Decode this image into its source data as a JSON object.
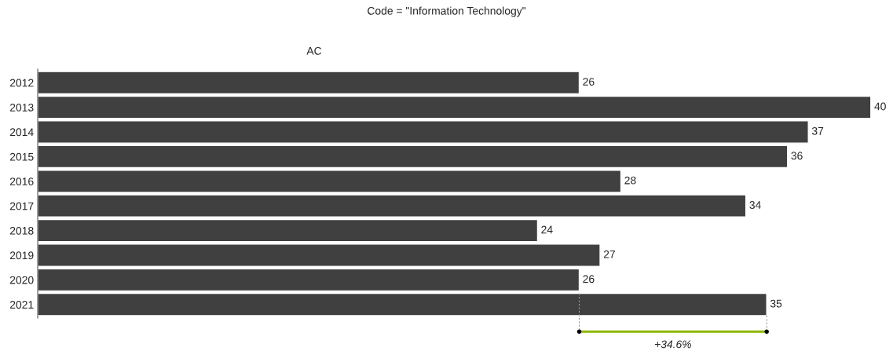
{
  "chart_data": {
    "type": "bar",
    "orientation": "horizontal",
    "title": "Code = \"Information Technology\"",
    "subtitle": "AC",
    "categories": [
      "2012",
      "2013",
      "2014",
      "2015",
      "2016",
      "2017",
      "2018",
      "2019",
      "2020",
      "2021"
    ],
    "values": [
      26,
      40,
      37,
      36,
      28,
      34,
      24,
      27,
      26,
      35
    ],
    "color": "#404040",
    "data_labels": true,
    "tick_labels": "y",
    "grid": false,
    "legend": false,
    "annotations": [
      "+34.6%"
    ]
  }
}
